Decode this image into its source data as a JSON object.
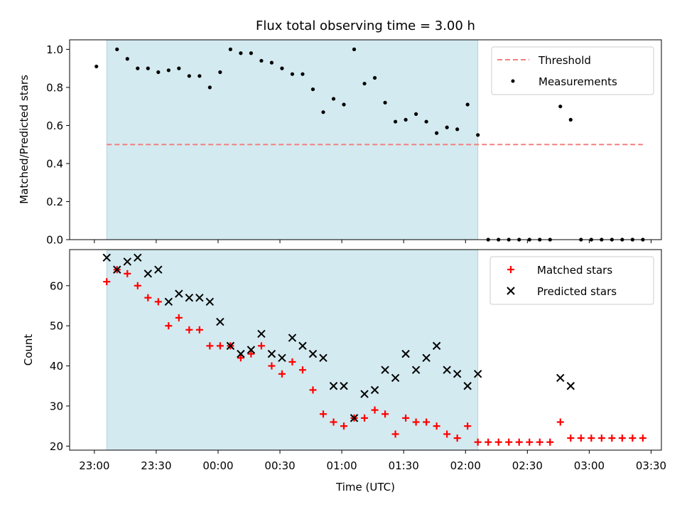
{
  "chart_data": [
    {
      "type": "scatter",
      "title": "Flux total observing time = 3.00 h",
      "ylabel": "Matched/Predicted stars",
      "xlabel": "",
      "ylim": [
        0,
        1.05
      ],
      "yticks": [
        0.0,
        0.2,
        0.4,
        0.6,
        0.8,
        1.0
      ],
      "ytick_labels": [
        "0.0",
        "0.2",
        "0.4",
        "0.6",
        "0.8",
        "1.0"
      ],
      "grid": false,
      "legend_position": "top-right",
      "shaded_interval": {
        "start": "23:06",
        "end": "02:06",
        "color": "#d3eaf0"
      },
      "threshold": {
        "name": "Threshold",
        "value": 0.5,
        "start": "23:06",
        "end": "03:26",
        "color": "#f28080"
      },
      "measurements": {
        "name": "Measurements",
        "color": "#000000",
        "points": [
          [
            "23:01",
            0.91
          ],
          [
            "23:11",
            1.0
          ],
          [
            "23:16",
            0.95
          ],
          [
            "23:21",
            0.9
          ],
          [
            "23:26",
            0.9
          ],
          [
            "23:31",
            0.88
          ],
          [
            "23:36",
            0.89
          ],
          [
            "23:41",
            0.9
          ],
          [
            "23:46",
            0.86
          ],
          [
            "23:51",
            0.86
          ],
          [
            "23:56",
            0.8
          ],
          [
            "00:01",
            0.88
          ],
          [
            "00:06",
            1.0
          ],
          [
            "00:11",
            0.98
          ],
          [
            "00:16",
            0.98
          ],
          [
            "00:21",
            0.94
          ],
          [
            "00:26",
            0.93
          ],
          [
            "00:31",
            0.9
          ],
          [
            "00:36",
            0.87
          ],
          [
            "00:41",
            0.87
          ],
          [
            "00:46",
            0.79
          ],
          [
            "00:51",
            0.67
          ],
          [
            "00:56",
            0.74
          ],
          [
            "01:01",
            0.71
          ],
          [
            "01:06",
            1.0
          ],
          [
            "01:11",
            0.82
          ],
          [
            "01:16",
            0.85
          ],
          [
            "01:21",
            0.72
          ],
          [
            "01:26",
            0.62
          ],
          [
            "01:31",
            0.63
          ],
          [
            "01:36",
            0.66
          ],
          [
            "01:41",
            0.62
          ],
          [
            "01:46",
            0.56
          ],
          [
            "01:51",
            0.59
          ],
          [
            "01:56",
            0.58
          ],
          [
            "02:01",
            0.71
          ],
          [
            "02:06",
            0.55
          ],
          [
            "02:11",
            0.0
          ],
          [
            "02:16",
            0.0
          ],
          [
            "02:21",
            0.0
          ],
          [
            "02:26",
            0.0
          ],
          [
            "02:31",
            0.0
          ],
          [
            "02:36",
            0.0
          ],
          [
            "02:41",
            0.0
          ],
          [
            "02:46",
            0.7
          ],
          [
            "02:51",
            0.63
          ],
          [
            "02:56",
            0.0
          ],
          [
            "03:01",
            0.0
          ],
          [
            "03:06",
            0.0
          ],
          [
            "03:11",
            0.0
          ],
          [
            "03:16",
            0.0
          ],
          [
            "03:21",
            0.0
          ],
          [
            "03:26",
            0.0
          ]
        ]
      }
    },
    {
      "type": "scatter",
      "xlabel": "Time (UTC)",
      "ylabel": "Count",
      "ylim": [
        19,
        69
      ],
      "yticks": [
        20,
        30,
        40,
        50,
        60
      ],
      "ytick_labels": [
        "20",
        "30",
        "40",
        "50",
        "60"
      ],
      "xticks": [
        "23:00",
        "23:30",
        "00:00",
        "00:30",
        "01:00",
        "01:30",
        "02:00",
        "02:30",
        "03:00",
        "03:30"
      ],
      "grid": false,
      "legend_position": "top-right",
      "shaded_interval": {
        "start": "23:06",
        "end": "02:06",
        "color": "#d3eaf0"
      },
      "series": [
        {
          "name": "Matched stars",
          "marker": "+",
          "color": "#ff0000",
          "points": [
            [
              "23:06",
              61
            ],
            [
              "23:11",
              64
            ],
            [
              "23:16",
              63
            ],
            [
              "23:21",
              60
            ],
            [
              "23:26",
              57
            ],
            [
              "23:31",
              56
            ],
            [
              "23:36",
              50
            ],
            [
              "23:41",
              52
            ],
            [
              "23:46",
              49
            ],
            [
              "23:51",
              49
            ],
            [
              "23:56",
              45
            ],
            [
              "00:01",
              45
            ],
            [
              "00:06",
              45
            ],
            [
              "00:11",
              42
            ],
            [
              "00:16",
              43
            ],
            [
              "00:21",
              45
            ],
            [
              "00:26",
              40
            ],
            [
              "00:31",
              38
            ],
            [
              "00:36",
              41
            ],
            [
              "00:41",
              39
            ],
            [
              "00:46",
              34
            ],
            [
              "00:51",
              28
            ],
            [
              "00:56",
              26
            ],
            [
              "01:01",
              25
            ],
            [
              "01:06",
              27
            ],
            [
              "01:11",
              27
            ],
            [
              "01:16",
              29
            ],
            [
              "01:21",
              28
            ],
            [
              "01:26",
              23
            ],
            [
              "01:31",
              27
            ],
            [
              "01:36",
              26
            ],
            [
              "01:41",
              26
            ],
            [
              "01:46",
              25
            ],
            [
              "01:51",
              23
            ],
            [
              "01:56",
              22
            ],
            [
              "02:01",
              25
            ],
            [
              "02:06",
              21
            ],
            [
              "02:11",
              21
            ],
            [
              "02:16",
              21
            ],
            [
              "02:21",
              21
            ],
            [
              "02:26",
              21
            ],
            [
              "02:31",
              21
            ],
            [
              "02:36",
              21
            ],
            [
              "02:41",
              21
            ],
            [
              "02:46",
              26
            ],
            [
              "02:51",
              22
            ],
            [
              "02:56",
              22
            ],
            [
              "03:01",
              22
            ],
            [
              "03:06",
              22
            ],
            [
              "03:11",
              22
            ],
            [
              "03:16",
              22
            ],
            [
              "03:21",
              22
            ],
            [
              "03:26",
              22
            ]
          ]
        },
        {
          "name": "Predicted stars",
          "marker": "x",
          "color": "#000000",
          "points": [
            [
              "23:06",
              67
            ],
            [
              "23:11",
              64
            ],
            [
              "23:16",
              66
            ],
            [
              "23:21",
              67
            ],
            [
              "23:26",
              63
            ],
            [
              "23:31",
              64
            ],
            [
              "23:36",
              56
            ],
            [
              "23:41",
              58
            ],
            [
              "23:46",
              57
            ],
            [
              "23:51",
              57
            ],
            [
              "23:56",
              56
            ],
            [
              "00:01",
              51
            ],
            [
              "00:06",
              45
            ],
            [
              "00:11",
              43
            ],
            [
              "00:16",
              44
            ],
            [
              "00:21",
              48
            ],
            [
              "00:26",
              43
            ],
            [
              "00:31",
              42
            ],
            [
              "00:36",
              47
            ],
            [
              "00:41",
              45
            ],
            [
              "00:46",
              43
            ],
            [
              "00:51",
              42
            ],
            [
              "00:56",
              35
            ],
            [
              "01:01",
              35
            ],
            [
              "01:06",
              27
            ],
            [
              "01:11",
              33
            ],
            [
              "01:16",
              34
            ],
            [
              "01:21",
              39
            ],
            [
              "01:26",
              37
            ],
            [
              "01:31",
              43
            ],
            [
              "01:36",
              39
            ],
            [
              "01:41",
              42
            ],
            [
              "01:46",
              45
            ],
            [
              "01:51",
              39
            ],
            [
              "01:56",
              38
            ],
            [
              "02:01",
              35
            ],
            [
              "02:06",
              38
            ],
            [
              "02:46",
              37
            ],
            [
              "02:51",
              35
            ]
          ]
        }
      ]
    }
  ]
}
